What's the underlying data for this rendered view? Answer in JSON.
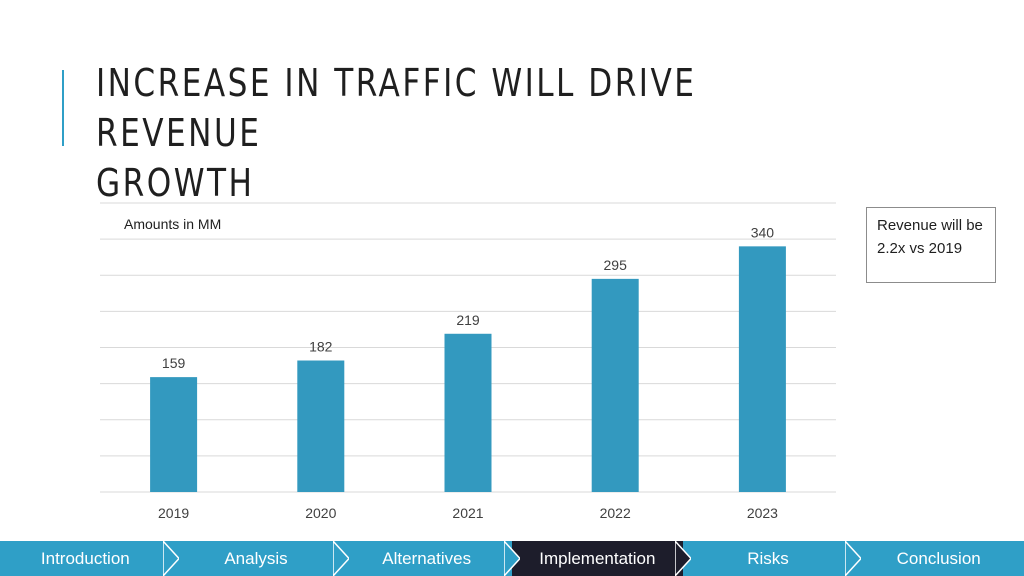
{
  "slide": {
    "title_line1": "INCREASE IN TRAFFIC WILL DRIVE REVENUE",
    "title_line2": "GROWTH",
    "callout": "Revenue will be 2.2x vs 2019"
  },
  "chart_data": {
    "type": "bar",
    "title": "",
    "annotation": "Amounts in MM",
    "categories": [
      "2019",
      "2020",
      "2021",
      "2022",
      "2023"
    ],
    "values": [
      159,
      182,
      219,
      295,
      340
    ],
    "xlabel": "",
    "ylabel": "",
    "ylim": [
      0,
      400
    ],
    "gridlines": true,
    "bar_color": "#3399bf"
  },
  "nav": {
    "items": [
      {
        "label": "Introduction",
        "active": false
      },
      {
        "label": "Analysis",
        "active": false
      },
      {
        "label": "Alternatives",
        "active": false
      },
      {
        "label": "Implementation",
        "active": true
      },
      {
        "label": "Risks",
        "active": false
      },
      {
        "label": "Conclusion",
        "active": false
      }
    ],
    "color": "#2f9fc7",
    "active_color": "#1d1d2b"
  }
}
